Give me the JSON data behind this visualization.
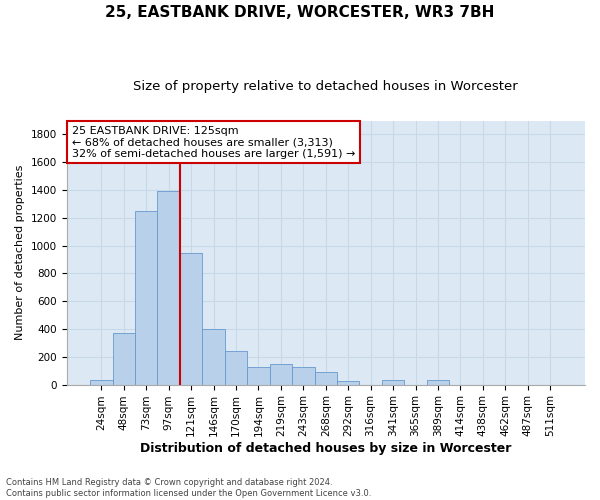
{
  "title1": "25, EASTBANK DRIVE, WORCESTER, WR3 7BH",
  "title2": "Size of property relative to detached houses in Worcester",
  "xlabel": "Distribution of detached houses by size in Worcester",
  "ylabel": "Number of detached properties",
  "categories": [
    "24sqm",
    "48sqm",
    "73sqm",
    "97sqm",
    "121sqm",
    "146sqm",
    "170sqm",
    "194sqm",
    "219sqm",
    "243sqm",
    "268sqm",
    "292sqm",
    "316sqm",
    "341sqm",
    "365sqm",
    "389sqm",
    "414sqm",
    "438sqm",
    "462sqm",
    "487sqm",
    "511sqm"
  ],
  "values": [
    30,
    370,
    1250,
    1390,
    950,
    400,
    240,
    130,
    150,
    130,
    90,
    25,
    0,
    30,
    0,
    30,
    0,
    0,
    0,
    0,
    0
  ],
  "bar_color": "#b8d0ea",
  "bar_edge_color": "#6699cc",
  "vline_color": "#cc0000",
  "vline_x": 4.0,
  "annotation_text_line1": "25 EASTBANK DRIVE: 125sqm",
  "annotation_text_line2": "← 68% of detached houses are smaller (3,313)",
  "annotation_text_line3": "32% of semi-detached houses are larger (1,591) →",
  "annotation_box_color": "#ffffff",
  "annotation_box_edge": "#cc0000",
  "ylim": [
    0,
    1900
  ],
  "yticks": [
    0,
    200,
    400,
    600,
    800,
    1000,
    1200,
    1400,
    1600,
    1800
  ],
  "grid_color": "#c8d8e8",
  "bg_color": "#dce9f5",
  "footnote": "Contains HM Land Registry data © Crown copyright and database right 2024.\nContains public sector information licensed under the Open Government Licence v3.0.",
  "title1_fontsize": 11,
  "title2_fontsize": 9.5,
  "xlabel_fontsize": 9,
  "ylabel_fontsize": 8,
  "tick_fontsize": 7.5,
  "annot_fontsize": 8
}
